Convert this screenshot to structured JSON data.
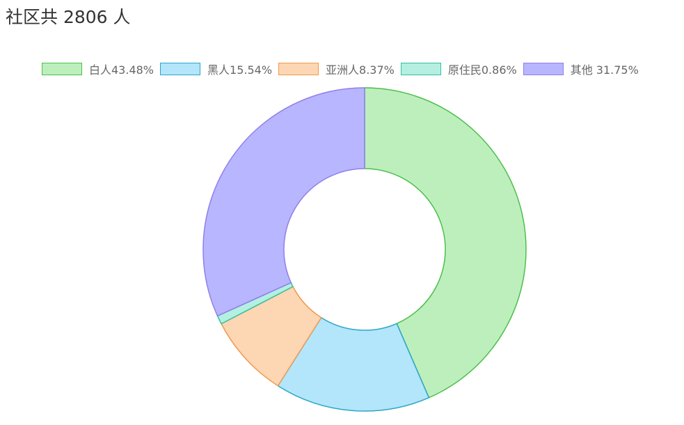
{
  "chart_data": {
    "type": "pie",
    "variant": "donut",
    "title": "社区共 2806 人",
    "legend_position": "top",
    "series": [
      {
        "name": "",
        "slices": [
          {
            "label": "白人43.48%",
            "value": 43.48,
            "fill": "#bdefbd",
            "stroke": "#4cbf4c"
          },
          {
            "label": "黑人15.54%",
            "value": 15.54,
            "fill": "#b3e5fb",
            "stroke": "#2aa6c6"
          },
          {
            "label": "亚洲人8.37%",
            "value": 8.37,
            "fill": "#fdd6b3",
            "stroke": "#ee9a4f"
          },
          {
            "label": "原住民0.86%",
            "value": 0.86,
            "fill": "#b5efe2",
            "stroke": "#33c0a0"
          },
          {
            "label": "其他 31.75%",
            "value": 31.75,
            "fill": "#b8b6fe",
            "stroke": "#8f7fea"
          }
        ]
      }
    ]
  }
}
